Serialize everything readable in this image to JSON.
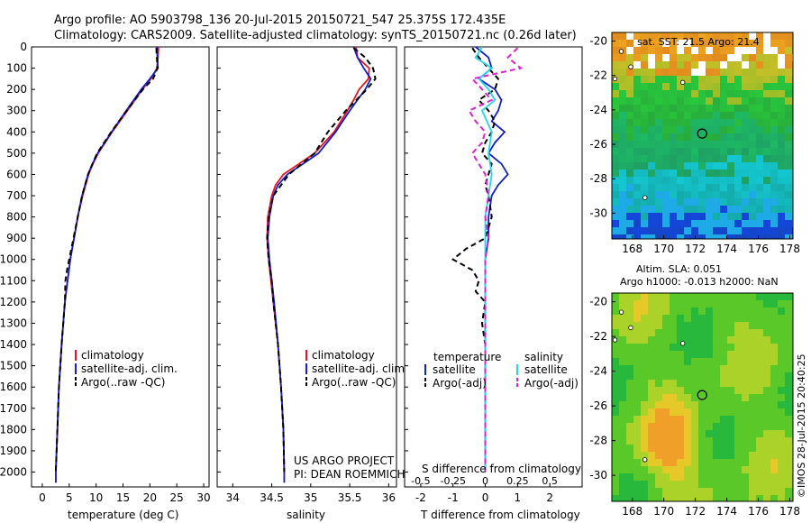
{
  "header": {
    "line1": "Argo profile: AO 5903798_136 20-Jul-2015 20150721_547 25.375S 172.435E",
    "line2": "Climatology: CARS2009. Satellite-adjusted climatology: synTS_20150721.nc (0.26d later)"
  },
  "colors": {
    "red": "#e8141c",
    "blue": "#1220c8",
    "black": "#000000",
    "cyan": "#22d8e8",
    "magenta": "#e020d0"
  },
  "chart_data": [
    {
      "type": "line",
      "id": "temperature",
      "xlabel": "temperature (deg C)",
      "ylabel": "",
      "xlim": [
        -2,
        31
      ],
      "ylim": [
        2070,
        0
      ],
      "xticks": [
        0,
        5,
        10,
        15,
        20,
        25,
        30
      ],
      "yticks": [
        0,
        100,
        200,
        300,
        400,
        500,
        600,
        700,
        800,
        900,
        1000,
        1100,
        1200,
        1300,
        1400,
        1500,
        1600,
        1700,
        1800,
        1900,
        2000
      ],
      "legend": [
        "climatology",
        "satellite-adj. clim.",
        "Argo(..raw -QC)"
      ],
      "series": [
        {
          "name": "climatology",
          "color": "red",
          "dash": false,
          "depth": [
            0,
            50,
            100,
            150,
            200,
            300,
            400,
            500,
            550,
            600,
            700,
            800,
            900,
            1000,
            1200,
            1400,
            1600,
            1800,
            2000,
            2050
          ],
          "values": [
            21.6,
            21.5,
            21.3,
            20.2,
            18.6,
            15.8,
            13.0,
            10.4,
            9.4,
            8.6,
            7.5,
            6.6,
            5.9,
            5.2,
            4.2,
            3.6,
            3.1,
            2.8,
            2.5,
            2.5
          ]
        },
        {
          "name": "satellite-adj. clim.",
          "color": "blue",
          "dash": false,
          "depth": [
            0,
            50,
            100,
            150,
            200,
            300,
            400,
            500,
            550,
            600,
            700,
            800,
            900,
            1000,
            1200,
            1400,
            1600,
            1800,
            2000,
            2050
          ],
          "values": [
            21.3,
            21.4,
            21.5,
            20.0,
            18.4,
            15.6,
            12.9,
            10.3,
            9.3,
            8.5,
            7.4,
            6.6,
            5.9,
            5.2,
            4.2,
            3.6,
            3.1,
            2.8,
            2.5,
            2.5
          ]
        },
        {
          "name": "Argo(..raw -QC)",
          "color": "black",
          "dash": true,
          "depth": [
            5,
            50,
            100,
            150,
            200,
            300,
            400,
            500,
            600,
            700,
            800,
            900,
            1000,
            1050,
            1100,
            1200,
            1400,
            1600,
            1800,
            2000
          ],
          "values": [
            21.2,
            21.3,
            21.4,
            20.6,
            18.7,
            15.7,
            12.8,
            10.2,
            8.5,
            7.4,
            6.6,
            5.8,
            5.0,
            4.6,
            4.3,
            4.2,
            3.6,
            3.1,
            2.8,
            2.5
          ]
        }
      ]
    },
    {
      "type": "line",
      "id": "salinity",
      "xlabel": "salinity",
      "ylabel": "",
      "xlim": [
        33.8,
        36.1
      ],
      "ylim": [
        2070,
        0
      ],
      "xticks": [
        34,
        34.5,
        35,
        35.5,
        36
      ],
      "legend": [
        "climatology",
        "satellite-adj. clim.",
        "Argo(..raw -QC)"
      ],
      "series": [
        {
          "name": "climatology",
          "color": "red",
          "dash": false,
          "depth": [
            0,
            50,
            100,
            150,
            200,
            250,
            300,
            400,
            500,
            550,
            600,
            650,
            700,
            800,
            900,
            1000,
            1200,
            1400,
            1600,
            1800,
            2000,
            2050
          ],
          "values": [
            35.58,
            35.6,
            35.75,
            35.74,
            35.62,
            35.55,
            35.47,
            35.3,
            35.05,
            34.85,
            34.65,
            34.55,
            34.5,
            34.45,
            34.44,
            34.46,
            34.52,
            34.58,
            34.62,
            34.65,
            34.66,
            34.66
          ]
        },
        {
          "name": "satellite-adj. clim.",
          "color": "blue",
          "dash": false,
          "depth": [
            0,
            50,
            100,
            150,
            200,
            250,
            300,
            400,
            500,
            550,
            600,
            650,
            700,
            800,
            900,
            1000,
            1200,
            1400,
            1600,
            1800,
            2000,
            2050
          ],
          "values": [
            35.55,
            35.6,
            35.68,
            35.77,
            35.7,
            35.6,
            35.5,
            35.32,
            35.1,
            34.9,
            34.7,
            34.58,
            34.52,
            34.47,
            34.45,
            34.47,
            34.53,
            34.58,
            34.62,
            34.65,
            34.66,
            34.66
          ]
        },
        {
          "name": "Argo(..raw -QC)",
          "color": "black",
          "dash": true,
          "depth": [
            5,
            50,
            100,
            150,
            200,
            300,
            400,
            500,
            600,
            700,
            800,
            900,
            1000,
            1100,
            1200,
            1400,
            1600,
            1800,
            2000
          ],
          "values": [
            35.55,
            35.7,
            35.8,
            35.83,
            35.72,
            35.45,
            35.22,
            35.05,
            34.72,
            34.52,
            34.46,
            34.44,
            34.46,
            34.5,
            34.52,
            34.58,
            34.62,
            34.65,
            34.66
          ]
        }
      ]
    },
    {
      "type": "line",
      "id": "differences",
      "xlabel": "T difference from climatology",
      "title_bottom": "S difference from climatology",
      "xlim": [
        -2.5,
        3.0
      ],
      "ylim": [
        2070,
        0
      ],
      "xticks": [
        -2,
        -1,
        0,
        1,
        2
      ],
      "xticklabels_top": [
        "-0.5",
        "-0.25",
        "0",
        "0.25",
        "0.5"
      ],
      "xticks_top_T": [
        -2,
        -1,
        0,
        1,
        2
      ],
      "legend_left_title": "temperature",
      "legend_right_title": "salinity",
      "legend": [
        "satellite",
        "Argo(-adj)",
        "satellite",
        "Argo(-adj)"
      ],
      "series": [
        {
          "name": "temperature satellite",
          "color": "blue",
          "dash": false,
          "depth": [
            0,
            50,
            100,
            150,
            200,
            250,
            300,
            350,
            400,
            450,
            500,
            550,
            600,
            650,
            700,
            800,
            900,
            1000,
            1100,
            1200,
            1400,
            1600,
            1800,
            2000
          ],
          "values": [
            -0.3,
            0.1,
            0.2,
            -0.2,
            0.3,
            0.5,
            0.4,
            0.2,
            0.6,
            0.3,
            0.1,
            0.5,
            0.7,
            0.4,
            0.2,
            0.1,
            0.1,
            0.0,
            0.0,
            0.0,
            0.0,
            0.0,
            0.0,
            0.0
          ]
        },
        {
          "name": "temperature Argo(-adj)",
          "color": "black",
          "dash": true,
          "depth": [
            5,
            50,
            100,
            150,
            200,
            250,
            300,
            350,
            400,
            450,
            500,
            550,
            600,
            650,
            700,
            800,
            900,
            950,
            1000,
            1050,
            1100,
            1150,
            1200,
            1300,
            1400,
            1600,
            1800,
            2000
          ],
          "values": [
            -0.4,
            -0.2,
            0.1,
            0.4,
            0.3,
            -0.2,
            0.1,
            0.3,
            0.2,
            0.0,
            -0.1,
            0.2,
            0.1,
            0.0,
            0.1,
            0.2,
            0.0,
            -0.6,
            -1.0,
            -0.4,
            -0.2,
            -0.3,
            0.0,
            -0.1,
            0.0,
            0.0,
            0.0,
            0.0
          ]
        },
        {
          "name": "salinity satellite",
          "color": "cyan",
          "dash": false,
          "depth": [
            0,
            50,
            100,
            150,
            200,
            250,
            300,
            400,
            500,
            600,
            700,
            800,
            1000,
            1200,
            1400,
            1600,
            1800,
            2000
          ],
          "values": [
            -0.1,
            -0.3,
            0.2,
            -0.2,
            0.1,
            0.3,
            -0.1,
            0.2,
            0.1,
            0.2,
            0.1,
            0.0,
            0.0,
            0.0,
            0.0,
            0.0,
            0.0,
            0.0
          ]
        },
        {
          "name": "salinity Argo(-adj)",
          "color": "magenta",
          "dash": true,
          "depth": [
            5,
            50,
            100,
            150,
            200,
            250,
            300,
            350,
            400,
            450,
            500,
            600,
            700,
            800,
            900,
            1000,
            1200,
            1400,
            1600,
            1800,
            2000
          ],
          "values": [
            1.0,
            0.7,
            1.1,
            -0.4,
            -0.1,
            0.2,
            -0.5,
            -0.3,
            0.0,
            -0.1,
            -0.4,
            0.0,
            0.1,
            0.0,
            0.1,
            0.0,
            0.0,
            0.0,
            0.0,
            0.0,
            0.0
          ]
        }
      ]
    },
    {
      "type": "heatmap",
      "id": "sst-map",
      "title": "sat. SST: 21.5 Argo: 21.4",
      "xlim": [
        166.7,
        178.2
      ],
      "ylim": [
        -31.5,
        -19.5
      ],
      "xticks": [
        168,
        170,
        172,
        174,
        176,
        178
      ],
      "yticks": [
        -20,
        -22,
        -24,
        -26,
        -28,
        -30
      ],
      "argo_position": {
        "lon": 172.435,
        "lat": -25.375
      }
    },
    {
      "type": "heatmap",
      "id": "sla-map",
      "title_line1": "Altim. SLA: 0.051",
      "title_line2": "Argo h1000: -0.013 h2000: NaN",
      "xlim": [
        166.7,
        178.2
      ],
      "ylim": [
        -31.5,
        -19.5
      ],
      "xticks": [
        168,
        170,
        172,
        174,
        176,
        178
      ],
      "yticks": [
        -20,
        -22,
        -24,
        -26,
        -28,
        -30
      ],
      "argo_position": {
        "lon": 172.435,
        "lat": -25.375
      }
    }
  ],
  "credits": {
    "project": "US ARGO PROJECT",
    "pi": "PI: DEAN ROEMMICH",
    "stamp": "©IMOS 28-Jul-2015 20:40:25"
  }
}
